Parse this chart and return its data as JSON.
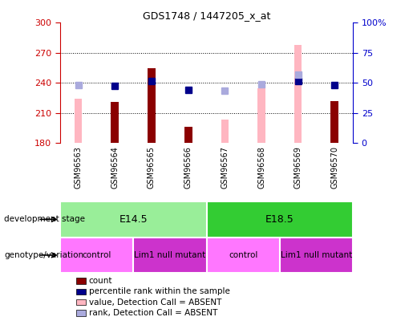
{
  "title": "GDS1748 / 1447205_x_at",
  "samples": [
    "GSM96563",
    "GSM96564",
    "GSM96565",
    "GSM96566",
    "GSM96567",
    "GSM96568",
    "GSM96569",
    "GSM96570"
  ],
  "count_values": [
    null,
    221,
    255,
    196,
    null,
    null,
    null,
    222
  ],
  "count_color": "#8B0000",
  "pink_bar_values": [
    224,
    null,
    null,
    null,
    203,
    235,
    278,
    null
  ],
  "pink_bar_color": "#FFB6C1",
  "blue_square_values": [
    null,
    237,
    242,
    233,
    null,
    null,
    242,
    238
  ],
  "blue_square_color": "#00008B",
  "light_blue_square_values": [
    238,
    null,
    null,
    null,
    232,
    239,
    248,
    null
  ],
  "light_blue_square_color": "#AAAADD",
  "ylim_left": [
    180,
    300
  ],
  "ylim_right": [
    0,
    100
  ],
  "yticks_left": [
    180,
    210,
    240,
    270,
    300
  ],
  "yticks_right": [
    0,
    25,
    50,
    75,
    100
  ],
  "ytick_labels_right": [
    "0",
    "25",
    "50",
    "75",
    "100%"
  ],
  "left_axis_color": "#CC0000",
  "right_axis_color": "#0000CC",
  "dev_stage_label": "development stage",
  "geno_label": "genotype/variation",
  "dev_stage_groups": [
    {
      "label": "E14.5",
      "samples": [
        0,
        1,
        2,
        3
      ],
      "color": "#99EE99"
    },
    {
      "label": "E18.5",
      "samples": [
        4,
        5,
        6,
        7
      ],
      "color": "#33CC33"
    }
  ],
  "geno_groups": [
    {
      "label": "control",
      "samples": [
        0,
        1
      ],
      "color": "#FF77FF"
    },
    {
      "label": "Lim1 null mutant",
      "samples": [
        2,
        3
      ],
      "color": "#CC33CC"
    },
    {
      "label": "control",
      "samples": [
        4,
        5
      ],
      "color": "#FF77FF"
    },
    {
      "label": "Lim1 null mutant",
      "samples": [
        6,
        7
      ],
      "color": "#CC33CC"
    }
  ],
  "legend_items": [
    {
      "label": "count",
      "color": "#8B0000"
    },
    {
      "label": "percentile rank within the sample",
      "color": "#00008B"
    },
    {
      "label": "value, Detection Call = ABSENT",
      "color": "#FFB6C1"
    },
    {
      "label": "rank, Detection Call = ABSENT",
      "color": "#AAAADD"
    }
  ],
  "bar_width": 0.22,
  "pink_bar_width": 0.2,
  "blue_marker_size": 6,
  "grid_lines": [
    210,
    240,
    270
  ],
  "xticklabel_bg": "#CCCCCC"
}
